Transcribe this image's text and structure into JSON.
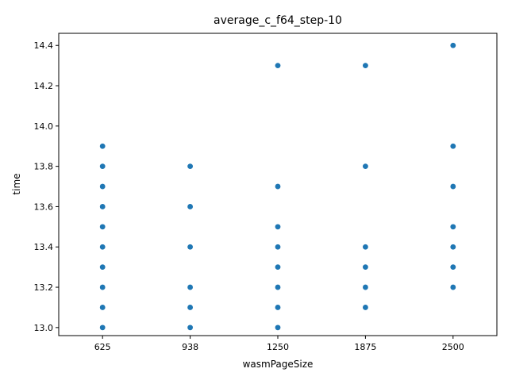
{
  "chart_data": {
    "type": "scatter",
    "title": "average_c_f64_step-10",
    "xlabel": "wasmPageSize",
    "ylabel": "time",
    "categories": [
      "625",
      "938",
      "1250",
      "1875",
      "2500"
    ],
    "y_ticks": [
      "13.0",
      "13.2",
      "13.4",
      "13.6",
      "13.8",
      "14.0",
      "14.2",
      "14.4"
    ],
    "ylim": [
      12.96,
      14.46
    ],
    "grid": false,
    "legend": "none",
    "point_color": "#1f77b4",
    "series": [
      {
        "points": [
          {
            "x": "625",
            "y": 13.9
          },
          {
            "x": "625",
            "y": 13.8
          },
          {
            "x": "625",
            "y": 13.7
          },
          {
            "x": "625",
            "y": 13.6
          },
          {
            "x": "625",
            "y": 13.5
          },
          {
            "x": "625",
            "y": 13.4
          },
          {
            "x": "625",
            "y": 13.3
          },
          {
            "x": "625",
            "y": 13.2
          },
          {
            "x": "625",
            "y": 13.1
          },
          {
            "x": "625",
            "y": 13.0
          },
          {
            "x": "938",
            "y": 13.8
          },
          {
            "x": "938",
            "y": 13.6
          },
          {
            "x": "938",
            "y": 13.4
          },
          {
            "x": "938",
            "y": 13.2
          },
          {
            "x": "938",
            "y": 13.1
          },
          {
            "x": "938",
            "y": 13.0
          },
          {
            "x": "1250",
            "y": 14.3
          },
          {
            "x": "1250",
            "y": 13.7
          },
          {
            "x": "1250",
            "y": 13.5
          },
          {
            "x": "1250",
            "y": 13.4
          },
          {
            "x": "1250",
            "y": 13.3
          },
          {
            "x": "1250",
            "y": 13.2
          },
          {
            "x": "1250",
            "y": 13.1
          },
          {
            "x": "1250",
            "y": 13.0
          },
          {
            "x": "1875",
            "y": 14.3
          },
          {
            "x": "1875",
            "y": 13.8
          },
          {
            "x": "1875",
            "y": 13.4
          },
          {
            "x": "1875",
            "y": 13.3
          },
          {
            "x": "1875",
            "y": 13.2
          },
          {
            "x": "1875",
            "y": 13.1
          },
          {
            "x": "2500",
            "y": 14.4
          },
          {
            "x": "2500",
            "y": 13.9
          },
          {
            "x": "2500",
            "y": 13.7
          },
          {
            "x": "2500",
            "y": 13.5
          },
          {
            "x": "2500",
            "y": 13.4
          },
          {
            "x": "2500",
            "y": 13.3
          },
          {
            "x": "2500",
            "y": 13.2
          }
        ]
      }
    ]
  }
}
